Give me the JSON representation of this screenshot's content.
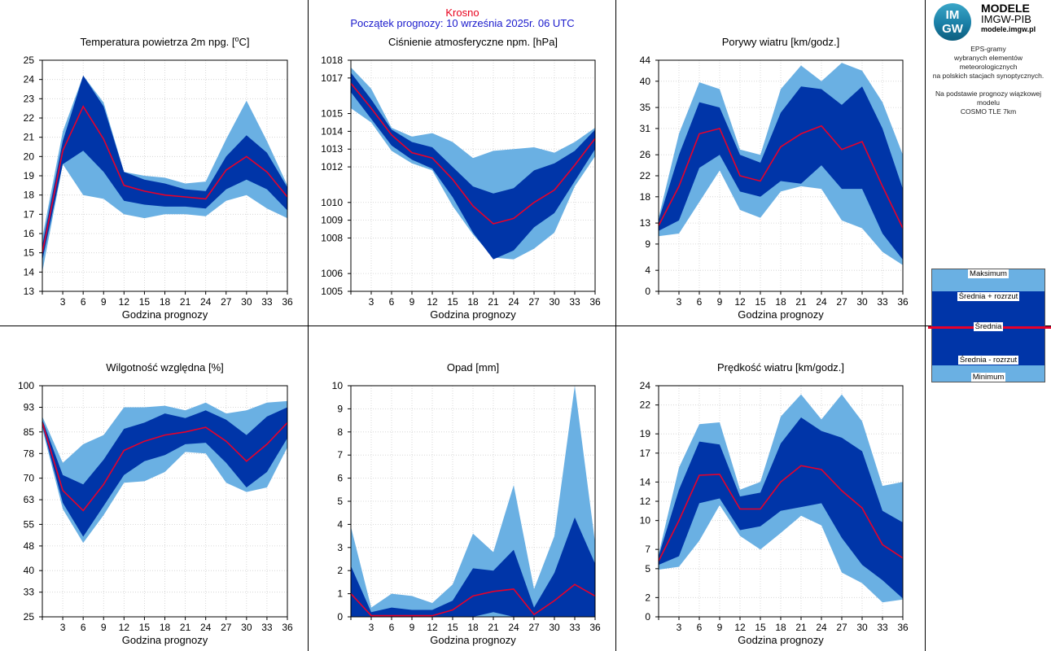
{
  "header": {
    "location": "Krosno",
    "start": "Początek prognozy: 10 września 2025r. 06 UTC"
  },
  "logo": {
    "badge_top": "IM",
    "badge_bottom": "GW",
    "line1": "MODELE",
    "line2": "IMGW-PIB",
    "line3": "modele.imgw.pl"
  },
  "note": {
    "l1": "EPS-gramy",
    "l2": "wybranych elementów meteorologicznych",
    "l3": "na polskich stacjach  synoptycznych.",
    "l4": "Na podstawie prognozy wiązkowej modelu",
    "l5": "COSMO TLE 7km"
  },
  "legend": {
    "max": "Maksimum",
    "plus": "Średnia + rozrzut",
    "mean": "Średnia",
    "minus": "Średnia - rozrzut",
    "min": "Minimum"
  },
  "colors": {
    "outer": "#6ab0e3",
    "inner": "#0035a8",
    "mean": "#e8002a",
    "grid": "#cfcfcf"
  },
  "chart_data": [
    {
      "type": "area",
      "title": "Temperatura powietrza 2m npg. [",
      "title_sup": "o",
      "title_end": "C]",
      "xlabel": "Godzina prognozy",
      "x": [
        0,
        3,
        6,
        9,
        12,
        15,
        18,
        21,
        24,
        27,
        30,
        33,
        36
      ],
      "ylim": [
        13,
        25
      ],
      "yticks": [
        "13",
        "14",
        "15",
        "16",
        "17",
        "18",
        "19",
        "20",
        "21",
        "22",
        "23",
        "24",
        "25"
      ],
      "series": [
        {
          "role": "max",
          "values": [
            15.8,
            21.3,
            24.2,
            22.8,
            19.2,
            19.0,
            18.9,
            18.6,
            18.7,
            20.9,
            22.9,
            20.8,
            18.5
          ]
        },
        {
          "role": "mean_plus",
          "values": [
            15.4,
            20.8,
            24.2,
            22.6,
            19.2,
            18.8,
            18.6,
            18.3,
            18.2,
            20.0,
            21.1,
            20.2,
            18.4
          ]
        },
        {
          "role": "mean",
          "values": [
            15.0,
            20.3,
            22.6,
            20.9,
            18.5,
            18.2,
            18.0,
            17.9,
            17.8,
            19.3,
            20.0,
            19.2,
            17.9
          ]
        },
        {
          "role": "mean_minus",
          "values": [
            14.6,
            19.6,
            20.3,
            19.2,
            17.7,
            17.5,
            17.4,
            17.4,
            17.3,
            18.3,
            18.8,
            18.3,
            17.2
          ]
        },
        {
          "role": "min",
          "values": [
            14.0,
            19.6,
            18.0,
            17.8,
            17.0,
            16.8,
            17.0,
            17.0,
            16.9,
            17.7,
            18.0,
            17.3,
            16.8
          ]
        }
      ]
    },
    {
      "type": "area",
      "title": "Ciśnienie atmosferyczne npm. [hPa]",
      "xlabel": "Godzina prognozy",
      "x": [
        0,
        3,
        6,
        9,
        12,
        15,
        18,
        21,
        24,
        27,
        30,
        33,
        36
      ],
      "ylim": [
        1005,
        1018
      ],
      "yticks": [
        "1005",
        "1006",
        "1008",
        "1009",
        "1010",
        "1012",
        "1013",
        "1014",
        "1015",
        "1017",
        "1018"
      ],
      "series": [
        {
          "role": "max",
          "values": [
            1017.6,
            1016.4,
            1014.2,
            1013.7,
            1013.9,
            1013.4,
            1012.5,
            1012.9,
            1013.0,
            1013.1,
            1012.8,
            1013.4,
            1014.2
          ]
        },
        {
          "role": "mean_plus",
          "values": [
            1017.3,
            1015.8,
            1014.1,
            1013.4,
            1013.1,
            1012.0,
            1010.9,
            1010.5,
            1010.8,
            1011.8,
            1012.2,
            1012.9,
            1014.1
          ]
        },
        {
          "role": "mean",
          "values": [
            1016.7,
            1015.3,
            1013.8,
            1012.8,
            1012.5,
            1011.3,
            1009.8,
            1008.8,
            1009.1,
            1010.0,
            1010.7,
            1012.1,
            1013.6
          ]
        },
        {
          "role": "mean_minus",
          "values": [
            1016.2,
            1014.7,
            1013.2,
            1012.4,
            1011.9,
            1010.3,
            1008.3,
            1006.8,
            1007.3,
            1008.6,
            1009.4,
            1011.2,
            1013.0
          ]
        },
        {
          "role": "min",
          "values": [
            1015.3,
            1014.5,
            1012.9,
            1012.2,
            1011.8,
            1009.8,
            1008.2,
            1006.9,
            1006.8,
            1007.4,
            1008.3,
            1010.9,
            1012.6
          ]
        }
      ]
    },
    {
      "type": "area",
      "title": "Porywy wiatru [km/godz.]",
      "xlabel": "Godzina prognozy",
      "x": [
        0,
        3,
        6,
        9,
        12,
        15,
        18,
        21,
        24,
        27,
        30,
        33,
        36
      ],
      "ylim": [
        0,
        44
      ],
      "yticks": [
        "0",
        "4",
        "9",
        "13",
        "18",
        "22",
        "26",
        "31",
        "35",
        "40",
        "44"
      ],
      "series": [
        {
          "role": "max",
          "values": [
            14.0,
            30.0,
            39.8,
            38.5,
            27.0,
            26.0,
            38.5,
            43.0,
            40.0,
            43.5,
            42.0,
            36.0,
            26.0
          ]
        },
        {
          "role": "mean_plus",
          "values": [
            13.5,
            26.0,
            36.0,
            35.0,
            26.0,
            24.5,
            34.0,
            39.0,
            38.5,
            35.5,
            39.0,
            31.0,
            19.5
          ]
        },
        {
          "role": "mean",
          "values": [
            12.5,
            20.0,
            30.0,
            31.0,
            22.0,
            21.0,
            27.5,
            30.0,
            31.5,
            27.0,
            28.5,
            20.0,
            12.0
          ]
        },
        {
          "role": "mean_minus",
          "values": [
            11.5,
            13.5,
            23.5,
            26.0,
            19.0,
            18.0,
            21.0,
            20.5,
            24.0,
            19.5,
            19.5,
            11.0,
            6.0
          ]
        },
        {
          "role": "min",
          "values": [
            10.5,
            11.0,
            17.0,
            23.0,
            15.5,
            14.0,
            19.0,
            20.0,
            19.5,
            13.5,
            12.0,
            7.5,
            5.0
          ]
        }
      ]
    },
    {
      "type": "area",
      "title": "Wilgotność względna [%]",
      "xlabel": "Godzina prognozy",
      "x": [
        0,
        3,
        6,
        9,
        12,
        15,
        18,
        21,
        24,
        27,
        30,
        33,
        36
      ],
      "ylim": [
        25,
        100
      ],
      "yticks": [
        "25",
        "33",
        "40",
        "48",
        "55",
        "63",
        "70",
        "78",
        "85",
        "93",
        "100"
      ],
      "series": [
        {
          "role": "max",
          "values": [
            90,
            75,
            81,
            84,
            93,
            93,
            93.5,
            92,
            94.5,
            91,
            92,
            94.5,
            95
          ]
        },
        {
          "role": "mean_plus",
          "values": [
            89,
            71,
            68,
            76,
            86,
            88,
            91,
            89.5,
            92,
            89,
            84,
            90,
            93
          ]
        },
        {
          "role": "mean",
          "values": [
            88,
            66,
            59.5,
            68,
            79,
            82,
            84,
            85,
            86.5,
            82,
            75.5,
            81,
            88
          ]
        },
        {
          "role": "mean_minus",
          "values": [
            87,
            62,
            51,
            61,
            71,
            75.5,
            77.5,
            81,
            81.5,
            75,
            67,
            72,
            83
          ]
        },
        {
          "role": "min",
          "values": [
            86,
            60,
            49,
            58,
            68.5,
            69,
            72,
            78.5,
            78,
            68.5,
            65.5,
            67,
            80
          ]
        }
      ]
    },
    {
      "type": "area",
      "title": "Opad [mm]",
      "xlabel": "Godzina prognozy",
      "x": [
        0,
        3,
        6,
        9,
        12,
        15,
        18,
        21,
        24,
        27,
        30,
        33,
        36
      ],
      "ylim": [
        0,
        10
      ],
      "yticks": [
        "0",
        "1",
        "2",
        "3",
        "4",
        "5",
        "6",
        "7",
        "8",
        "9",
        "10"
      ],
      "series": [
        {
          "role": "max",
          "values": [
            3.9,
            0.4,
            1.0,
            0.9,
            0.6,
            1.4,
            3.6,
            2.8,
            5.7,
            1.2,
            3.5,
            10.0,
            3.2
          ]
        },
        {
          "role": "mean_plus",
          "values": [
            2.2,
            0.2,
            0.4,
            0.3,
            0.3,
            0.7,
            2.1,
            2.0,
            2.9,
            0.4,
            1.9,
            4.3,
            2.3
          ]
        },
        {
          "role": "mean",
          "values": [
            1.0,
            0.05,
            0.05,
            0.05,
            0.05,
            0.3,
            0.9,
            1.1,
            1.2,
            0.1,
            0.7,
            1.4,
            0.9
          ]
        },
        {
          "role": "mean_minus",
          "values": [
            0,
            0,
            0,
            0,
            0,
            0,
            0,
            0.2,
            0,
            0,
            0,
            0,
            0
          ]
        },
        {
          "role": "min",
          "values": [
            0,
            0,
            0,
            0,
            0,
            0,
            0,
            0,
            0,
            0,
            0,
            0,
            0
          ]
        }
      ]
    },
    {
      "type": "area",
      "title": "Prędkość wiatru [km/godz.]",
      "xlabel": "Godzina prognozy",
      "x": [
        0,
        3,
        6,
        9,
        12,
        15,
        18,
        21,
        24,
        27,
        30,
        33,
        36
      ],
      "ylim": [
        0,
        24
      ],
      "yticks": [
        "0",
        "2",
        "5",
        "7",
        "10",
        "12",
        "14",
        "17",
        "19",
        "22",
        "24"
      ],
      "series": [
        {
          "role": "max",
          "values": [
            6.5,
            15.5,
            20.0,
            20.2,
            13.2,
            14.0,
            20.8,
            23.1,
            20.5,
            23.1,
            20.3,
            13.6,
            14.0
          ]
        },
        {
          "role": "mean_plus",
          "values": [
            6.3,
            13.2,
            18.2,
            17.9,
            12.5,
            12.9,
            18.0,
            20.7,
            19.3,
            18.6,
            17.2,
            11.0,
            9.8
          ]
        },
        {
          "role": "mean",
          "values": [
            5.8,
            10.0,
            14.7,
            14.8,
            11.2,
            11.2,
            14.0,
            15.7,
            15.3,
            13.1,
            11.3,
            7.5,
            6.1
          ]
        },
        {
          "role": "mean_minus",
          "values": [
            5.4,
            6.3,
            11.8,
            12.3,
            9.0,
            9.4,
            11.0,
            11.4,
            11.8,
            8.2,
            5.4,
            3.8,
            1.9
          ]
        },
        {
          "role": "min",
          "values": [
            4.9,
            5.2,
            7.9,
            11.6,
            8.4,
            7.0,
            8.7,
            10.5,
            9.5,
            4.6,
            3.5,
            1.5,
            1.8
          ]
        }
      ]
    }
  ]
}
